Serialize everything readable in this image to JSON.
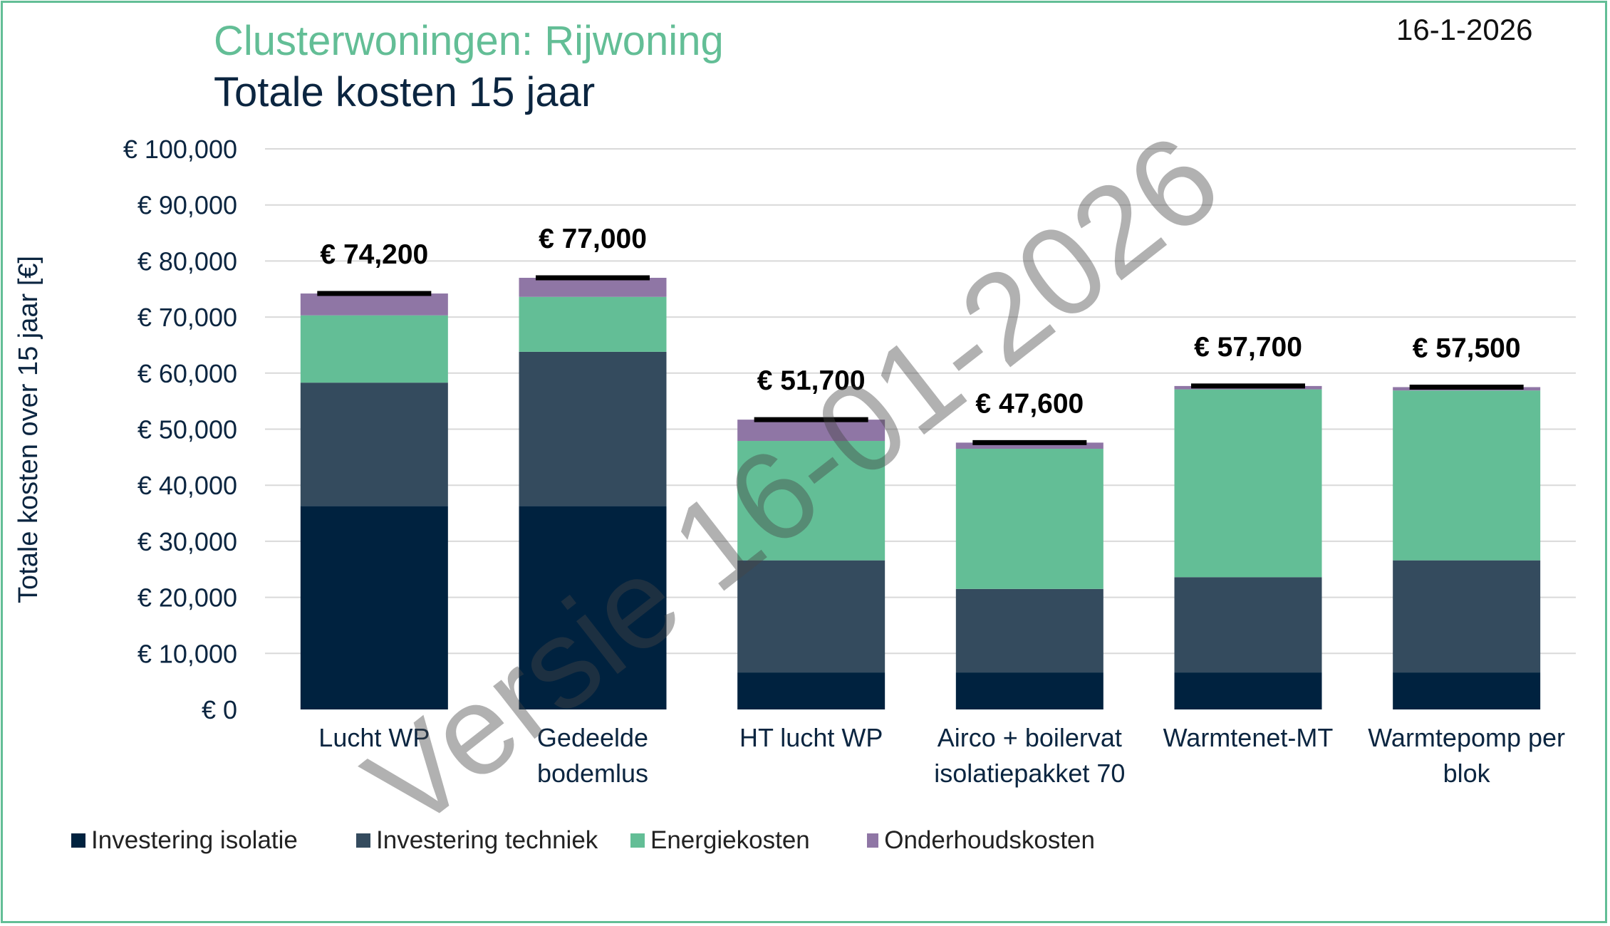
{
  "header": {
    "subtitle": "Clusterwoningen: Rijwoning",
    "title": "Totale kosten 15 jaar",
    "date": "16-1-2026"
  },
  "watermark": "Versie 16-01-2026",
  "colors": {
    "isolatie": "#00223f",
    "techniek": "#344b5e",
    "energie": "#63be96",
    "onderhoud": "#8f76a5",
    "accent": "#63be96",
    "grid": "#d9d9d9"
  },
  "chart_data": {
    "type": "bar",
    "stacked": true,
    "title": "Totale kosten 15 jaar",
    "ylabel": "Totale kosten over 15 jaar [€]",
    "ylim": [
      0,
      100000
    ],
    "yticks": [
      0,
      10000,
      20000,
      30000,
      40000,
      50000,
      60000,
      70000,
      80000,
      90000,
      100000
    ],
    "ytick_labels": [
      "€ 0",
      "€ 10,000",
      "€ 20,000",
      "€ 30,000",
      "€ 40,000",
      "€ 50,000",
      "€ 60,000",
      "€ 70,000",
      "€ 80,000",
      "€ 90,000",
      "€ 100,000"
    ],
    "categories": [
      [
        "Lucht WP"
      ],
      [
        "Gedeelde",
        "bodemlus"
      ],
      [
        "HT lucht WP"
      ],
      [
        "Airco + boilervat",
        "isolatiepakket 70"
      ],
      [
        "Warmtenet-MT"
      ],
      [
        "Warmtepomp per",
        "blok"
      ]
    ],
    "series": [
      {
        "name": "Investering isolatie",
        "color": "#00223f",
        "values": [
          36300,
          36300,
          6600,
          6600,
          6600,
          6600
        ]
      },
      {
        "name": "Investering techniek",
        "color": "#344b5e",
        "values": [
          22000,
          27500,
          20000,
          14900,
          17000,
          20000
        ]
      },
      {
        "name": "Energiekosten",
        "color": "#63be96",
        "values": [
          12000,
          9800,
          21300,
          25000,
          33500,
          30300
        ]
      },
      {
        "name": "Onderhoudskosten",
        "color": "#8f76a5",
        "values": [
          3900,
          3400,
          3800,
          1100,
          600,
          600
        ]
      }
    ],
    "totals": [
      74200,
      77000,
      51700,
      47600,
      57700,
      57500
    ],
    "total_labels": [
      "€ 74,200",
      "€ 77,000",
      "€ 51,700",
      "€ 47,600",
      "€ 57,700",
      "€ 57,500"
    ],
    "legend_position": "bottom"
  }
}
